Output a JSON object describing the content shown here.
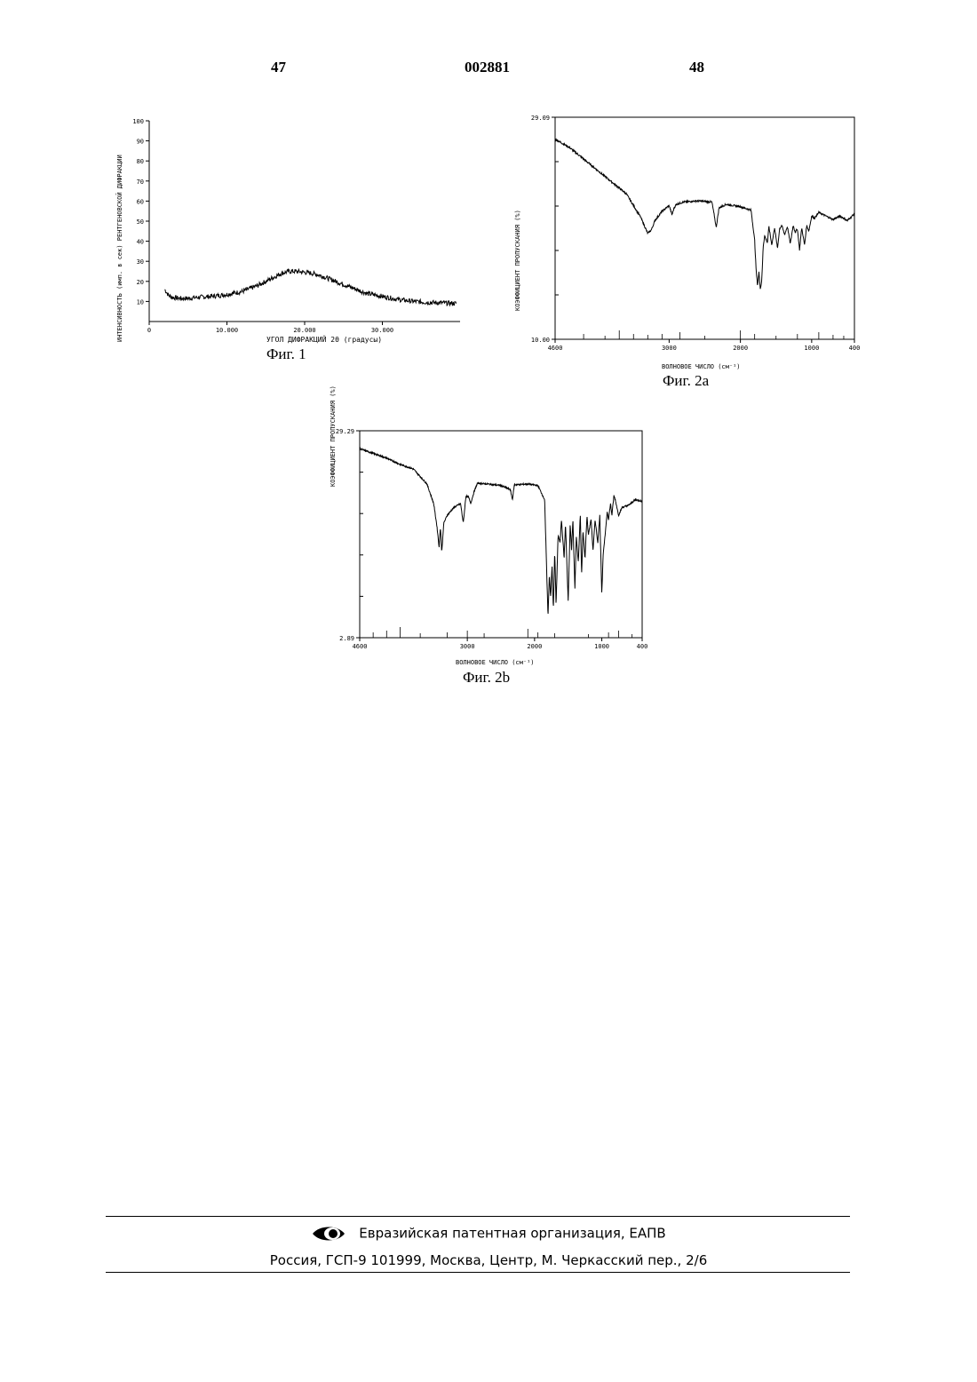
{
  "header": {
    "page_left": "47",
    "doc_number": "002881",
    "page_right": "48"
  },
  "captions": {
    "fig1": "Фиг. 1",
    "fig2a": "Фиг. 2a",
    "fig2b": "Фиг. 2b"
  },
  "footer": {
    "org": "Евразийская патентная организация, ЕАПВ",
    "address": "Россия, ГСП-9 101999, Москва, Центр, М. Черкасский пер., 2/6",
    "logo_icon": "eye-logo-icon"
  },
  "chart_data": [
    {
      "id": "fig1",
      "type": "line",
      "title": "",
      "xlabel": "УГОЛ ДИФРАКЦИЙ 2θ (градусы)",
      "ylabel": "ИНТЕНСИВНОСТЬ (имп. в сек) РЕНТГЕНОВСКОЙ ДИФРАКЦИИ",
      "xlim": [
        0,
        40
      ],
      "ylim": [
        0,
        100
      ],
      "x_ticks": [
        "0",
        "10.000",
        "20.000",
        "30.000"
      ],
      "x_tick_values": [
        0,
        10,
        20,
        30
      ],
      "y_ticks": [
        "10",
        "20",
        "30",
        "40",
        "50",
        "60",
        "70",
        "80",
        "90",
        "100"
      ],
      "y_tick_values": [
        10,
        20,
        30,
        40,
        50,
        60,
        70,
        80,
        90,
        100
      ],
      "noise": 1.2,
      "series": [
        {
          "x": [
            2,
            2.5,
            3,
            4,
            5,
            6,
            8,
            10,
            12,
            14,
            16,
            17,
            18,
            19,
            20,
            21,
            22,
            24,
            26,
            28,
            30,
            32,
            34,
            36,
            39.5
          ],
          "y": [
            16,
            13,
            12,
            11.5,
            11.5,
            12,
            12.5,
            13.5,
            15,
            18,
            22,
            24,
            25,
            25,
            24.5,
            24,
            23,
            20,
            17,
            14,
            12.5,
            11,
            10,
            9.5,
            9
          ]
        }
      ]
    },
    {
      "id": "fig2a",
      "type": "line",
      "title": "",
      "xlabel": "ВОЛНОВОЕ ЧИСЛО (см⁻¹)",
      "ylabel": "КОЭФФИЦИЕНТ ПРОПУСКАНИЯ (%)",
      "xlim": [
        4600,
        400
      ],
      "ylim": [
        10.0,
        29.09
      ],
      "x_ticks": [
        "4600",
        "3000",
        "2000",
        "1000",
        "400"
      ],
      "x_tick_values": [
        4600,
        3000,
        2000,
        1000,
        400
      ],
      "y_ticks": [
        "10.00",
        "29.09"
      ],
      "y_tick_values": [
        10.0,
        29.09
      ],
      "noise": 0.08,
      "series": [
        {
          "x": [
            4600,
            4400,
            4200,
            4000,
            3800,
            3600,
            3500,
            3400,
            3350,
            3300,
            3250,
            3200,
            3100,
            3000,
            2960,
            2930,
            2900,
            2800,
            2600,
            2400,
            2360,
            2340,
            2300,
            2200,
            2000,
            1850,
            1800,
            1780,
            1760,
            1740,
            1720,
            1700,
            1680,
            1660,
            1620,
            1600,
            1560,
            1520,
            1480,
            1450,
            1420,
            1380,
            1340,
            1300,
            1260,
            1230,
            1200,
            1170,
            1140,
            1100,
            1070,
            1040,
            1000,
            960,
            900,
            800,
            700,
            600,
            500,
            400
          ],
          "y": [
            27.2,
            26.5,
            25.5,
            24.5,
            23.5,
            22.5,
            21.5,
            20.5,
            19.8,
            19.1,
            19.4,
            20.2,
            21.0,
            21.5,
            20.7,
            21.3,
            21.6,
            21.8,
            21.9,
            21.8,
            20.4,
            19.6,
            21.3,
            21.6,
            21.4,
            21.1,
            18.5,
            16.0,
            14.6,
            15.8,
            14.3,
            15.1,
            18.0,
            18.9,
            18.3,
            19.7,
            18.1,
            19.6,
            17.8,
            19.5,
            19.8,
            19.0,
            19.7,
            18.2,
            19.8,
            19.2,
            19.5,
            17.7,
            19.6,
            18.1,
            19.8,
            19.3,
            20.6,
            20.4,
            20.9,
            20.6,
            20.3,
            20.6,
            20.2,
            20.8
          ]
        }
      ]
    },
    {
      "id": "fig2b",
      "type": "line",
      "title": "",
      "xlabel": "ВОЛНОВОЕ ЧИСЛО (см⁻¹)",
      "ylabel": "КОЭФФИЦИЕНТ ПРОПУСКАНИЯ (%)",
      "xlim": [
        4600,
        400
      ],
      "ylim": [
        2.89,
        29.29
      ],
      "x_ticks": [
        "4600",
        "3000",
        "2000",
        "1000",
        "400"
      ],
      "x_tick_values": [
        4600,
        3000,
        2000,
        1000,
        400
      ],
      "y_ticks": [
        "2.89",
        "29.29"
      ],
      "y_tick_values": [
        2.89,
        29.29
      ],
      "noise": 0.1,
      "series": [
        {
          "x": [
            4600,
            4400,
            4200,
            4000,
            3800,
            3600,
            3500,
            3450,
            3420,
            3400,
            3380,
            3350,
            3300,
            3200,
            3100,
            3060,
            3020,
            2980,
            2950,
            2900,
            2850,
            2700,
            2500,
            2360,
            2330,
            2300,
            2100,
            1950,
            1850,
            1800,
            1780,
            1760,
            1740,
            1720,
            1700,
            1680,
            1650,
            1620,
            1600,
            1560,
            1540,
            1500,
            1470,
            1450,
            1430,
            1400,
            1380,
            1350,
            1320,
            1300,
            1280,
            1250,
            1220,
            1200,
            1160,
            1130,
            1100,
            1060,
            1030,
            1000,
            980,
            950,
            920,
            900,
            870,
            850,
            820,
            800,
            750,
            700,
            600,
            500,
            400
          ],
          "y": [
            27.0,
            26.4,
            25.8,
            25.0,
            24.4,
            22.5,
            20.0,
            17.0,
            14.5,
            17.0,
            13.8,
            17.5,
            18.5,
            19.5,
            20.0,
            17.5,
            21.0,
            20.8,
            20.0,
            21.5,
            22.6,
            22.5,
            22.3,
            21.8,
            20.5,
            22.4,
            22.5,
            22.3,
            20.5,
            5.5,
            11.0,
            8.0,
            12.0,
            6.5,
            14.0,
            7.0,
            16.0,
            15.0,
            18.0,
            13.0,
            17.5,
            7.5,
            17.5,
            14.0,
            18.0,
            9.0,
            16.0,
            12.5,
            18.5,
            11.0,
            16.5,
            13.0,
            18.5,
            16.0,
            18.0,
            14.0,
            18.0,
            15.0,
            18.5,
            8.5,
            13.5,
            16.0,
            19.0,
            18.0,
            20.0,
            18.5,
            21.0,
            20.5,
            18.5,
            19.5,
            19.8,
            20.5,
            20.3
          ]
        }
      ]
    }
  ]
}
